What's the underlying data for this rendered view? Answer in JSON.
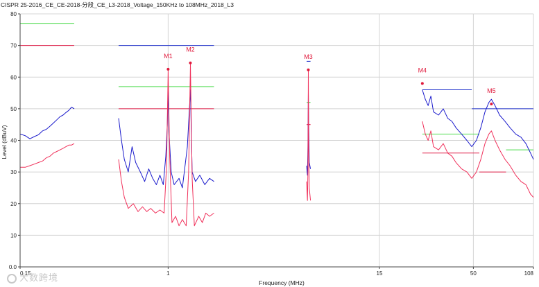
{
  "chart_data": {
    "type": "line",
    "title": "CISPR 25-2016_CE_CE-2018-分段_CE_L3-2018_Voltage_150KHz to 108MHz_2018_L3",
    "xlabel": "Frequency (MHz)",
    "ylabel": "Level (dBuV)",
    "xscale": "log",
    "xlim": [
      0.15,
      108
    ],
    "ylim": [
      0,
      80
    ],
    "yticks": [
      0,
      10,
      20,
      30,
      40,
      50,
      60,
      70,
      80
    ],
    "ytick_labels": [
      "0.0",
      "10",
      "20",
      "30",
      "40",
      "50",
      "60",
      "70",
      "80"
    ],
    "xticks": [
      0.15,
      1,
      15,
      50,
      108
    ],
    "xtick_labels": [
      "0.15",
      "1",
      "15",
      "50",
      "108"
    ],
    "grid": true,
    "limits": [
      {
        "color": "#55dd55",
        "segments": [
          [
            0.15,
            0.3,
            77
          ],
          [
            0.53,
            1.8,
            57
          ],
          [
            5.9,
            6.2,
            52
          ],
          [
            26,
            54,
            42
          ],
          [
            76,
            108,
            37
          ]
        ]
      },
      {
        "color": "#e0204a",
        "segments": [
          [
            0.15,
            0.3,
            70
          ],
          [
            0.53,
            1.8,
            50
          ],
          [
            5.9,
            6.2,
            45
          ],
          [
            26,
            54,
            36
          ],
          [
            54,
            76,
            30
          ]
        ]
      },
      {
        "color": "#2233cc",
        "segments": [
          [
            0.53,
            1.8,
            70
          ],
          [
            5.9,
            6.2,
            65
          ],
          [
            26,
            49,
            56
          ],
          [
            49,
            108,
            50
          ]
        ]
      }
    ],
    "series": [
      {
        "color": "#1a1acc",
        "data": [
          [
            0.15,
            42
          ],
          [
            0.16,
            41.5
          ],
          [
            0.17,
            40.5
          ],
          [
            0.18,
            41.2
          ],
          [
            0.19,
            41.8
          ],
          [
            0.2,
            43
          ],
          [
            0.21,
            43.5
          ],
          [
            0.22,
            44.5
          ],
          [
            0.23,
            45.5
          ],
          [
            0.24,
            46.5
          ],
          [
            0.25,
            47.5
          ],
          [
            0.26,
            48
          ],
          [
            0.27,
            48.8
          ],
          [
            0.28,
            49.5
          ],
          [
            0.29,
            50.5
          ],
          [
            0.3,
            50
          ],
          [
            0.53,
            47
          ],
          [
            0.55,
            40
          ],
          [
            0.57,
            34
          ],
          [
            0.6,
            30
          ],
          [
            0.63,
            38
          ],
          [
            0.66,
            33
          ],
          [
            0.7,
            30
          ],
          [
            0.74,
            27
          ],
          [
            0.78,
            31
          ],
          [
            0.82,
            28
          ],
          [
            0.86,
            26
          ],
          [
            0.9,
            29
          ],
          [
            0.94,
            26
          ],
          [
            0.97,
            35
          ],
          [
            0.99,
            45
          ],
          [
            1.0,
            57
          ],
          [
            1.01,
            43
          ],
          [
            1.04,
            30
          ],
          [
            1.08,
            26
          ],
          [
            1.15,
            28
          ],
          [
            1.2,
            25
          ],
          [
            1.28,
            38
          ],
          [
            1.33,
            56
          ],
          [
            1.36,
            30
          ],
          [
            1.42,
            27
          ],
          [
            1.5,
            29
          ],
          [
            1.6,
            26
          ],
          [
            1.7,
            28
          ],
          [
            1.8,
            27
          ],
          [
            5.9,
            32
          ],
          [
            5.96,
            29
          ],
          [
            6.0,
            38
          ],
          [
            6.03,
            55
          ],
          [
            6.06,
            45
          ],
          [
            6.1,
            33
          ],
          [
            6.2,
            31
          ],
          [
            26,
            56
          ],
          [
            27,
            53
          ],
          [
            28,
            51
          ],
          [
            29,
            54
          ],
          [
            30,
            49
          ],
          [
            32,
            48
          ],
          [
            34,
            50
          ],
          [
            36,
            47
          ],
          [
            38,
            46
          ],
          [
            40,
            44
          ],
          [
            43,
            42
          ],
          [
            46,
            40
          ],
          [
            49,
            38
          ],
          [
            52,
            40
          ],
          [
            55,
            44
          ],
          [
            58,
            49
          ],
          [
            61,
            52
          ],
          [
            63,
            53
          ],
          [
            66,
            51
          ],
          [
            70,
            48
          ],
          [
            75,
            46
          ],
          [
            80,
            44
          ],
          [
            86,
            42
          ],
          [
            92,
            41
          ],
          [
            98,
            39
          ],
          [
            104,
            36
          ],
          [
            108,
            34
          ]
        ]
      },
      {
        "color": "#f0305a",
        "data": [
          [
            0.15,
            31.5
          ],
          [
            0.16,
            31.5
          ],
          [
            0.17,
            32
          ],
          [
            0.18,
            32.5
          ],
          [
            0.19,
            33
          ],
          [
            0.2,
            33.5
          ],
          [
            0.21,
            34.5
          ],
          [
            0.22,
            35
          ],
          [
            0.23,
            36
          ],
          [
            0.24,
            36.5
          ],
          [
            0.25,
            37
          ],
          [
            0.26,
            37.5
          ],
          [
            0.27,
            38
          ],
          [
            0.28,
            38.5
          ],
          [
            0.29,
            38.5
          ],
          [
            0.3,
            39
          ],
          [
            0.53,
            34
          ],
          [
            0.55,
            27
          ],
          [
            0.57,
            22
          ],
          [
            0.6,
            18.5
          ],
          [
            0.64,
            20
          ],
          [
            0.68,
            17.5
          ],
          [
            0.72,
            19
          ],
          [
            0.76,
            17.5
          ],
          [
            0.8,
            18.5
          ],
          [
            0.85,
            17
          ],
          [
            0.9,
            18
          ],
          [
            0.95,
            17
          ],
          [
            0.98,
            32
          ],
          [
            1.0,
            62
          ],
          [
            1.02,
            35
          ],
          [
            1.05,
            14
          ],
          [
            1.1,
            16
          ],
          [
            1.15,
            13
          ],
          [
            1.2,
            15
          ],
          [
            1.26,
            13
          ],
          [
            1.3,
            30
          ],
          [
            1.33,
            64
          ],
          [
            1.36,
            28
          ],
          [
            1.4,
            13
          ],
          [
            1.48,
            16
          ],
          [
            1.55,
            14
          ],
          [
            1.62,
            17
          ],
          [
            1.7,
            16
          ],
          [
            1.8,
            17
          ],
          [
            5.9,
            27
          ],
          [
            5.96,
            21
          ],
          [
            6.0,
            30
          ],
          [
            6.03,
            62
          ],
          [
            6.06,
            37
          ],
          [
            6.1,
            25
          ],
          [
            6.2,
            21
          ],
          [
            26,
            46
          ],
          [
            27,
            42
          ],
          [
            28,
            40
          ],
          [
            29,
            43
          ],
          [
            30,
            38
          ],
          [
            32,
            37
          ],
          [
            34,
            39
          ],
          [
            36,
            36
          ],
          [
            38,
            35
          ],
          [
            40,
            33
          ],
          [
            43,
            31
          ],
          [
            46,
            30
          ],
          [
            49,
            28
          ],
          [
            52,
            30
          ],
          [
            55,
            34
          ],
          [
            58,
            39
          ],
          [
            61,
            42
          ],
          [
            63,
            43
          ],
          [
            66,
            40
          ],
          [
            70,
            37
          ],
          [
            75,
            34
          ],
          [
            80,
            32
          ],
          [
            86,
            29
          ],
          [
            92,
            27
          ],
          [
            98,
            26
          ],
          [
            104,
            23
          ],
          [
            108,
            22
          ]
        ]
      }
    ],
    "markers": [
      {
        "label": "M1",
        "x": 1.0,
        "y": 62.5,
        "color": "#e01a3c"
      },
      {
        "label": "M2",
        "x": 1.33,
        "y": 64.5,
        "color": "#e01a3c"
      },
      {
        "label": "M3",
        "x": 6.03,
        "y": 62.3,
        "color": "#e01a3c"
      },
      {
        "label": "M4",
        "x": 26,
        "y": 58,
        "color": "#e01a3c"
      },
      {
        "label": "M5",
        "x": 63,
        "y": 51.5,
        "color": "#e01a3c"
      }
    ]
  },
  "watermark": "大数跨境"
}
